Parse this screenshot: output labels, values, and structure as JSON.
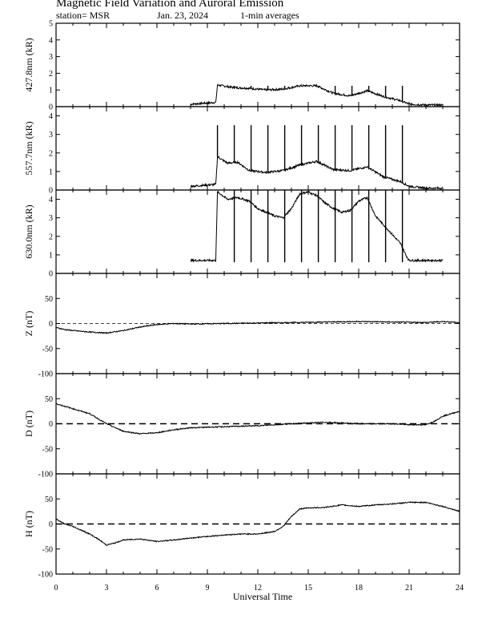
{
  "header": {
    "title": "Magnetic Field Variation and Auroral Emission",
    "station": "station= MSR",
    "date": "Jan. 23, 2024",
    "averaging": "1-min averages"
  },
  "chart_data": [
    {
      "id": "emission-4278",
      "type": "line",
      "ylabel": "427.8nm (kR)",
      "ylim": [
        0,
        5
      ],
      "yticks": [
        0,
        1,
        2,
        3,
        4,
        5
      ],
      "x": [
        8.0,
        9.5,
        9.6,
        10.5,
        11.5,
        12.5,
        13.5,
        14.5,
        15.5,
        16.5,
        17.5,
        18.5,
        19.5,
        20.5,
        21.0,
        22.0,
        23.0
      ],
      "values": [
        0.15,
        0.25,
        1.3,
        1.15,
        1.1,
        1.0,
        1.05,
        1.25,
        1.25,
        0.8,
        0.65,
        0.95,
        0.6,
        0.35,
        0.15,
        0.1,
        0.1
      ],
      "spikes_x": [
        10.6,
        11.6,
        12.6,
        13.6,
        14.6,
        15.6,
        16.6,
        17.6,
        18.6,
        19.6,
        20.6
      ],
      "spike_top": 1.25
    },
    {
      "id": "emission-5577",
      "type": "line",
      "ylabel": "557.7nm (kR)",
      "ylim": [
        0,
        4.5
      ],
      "yticks": [
        0,
        1,
        2,
        3,
        4
      ],
      "x": [
        8.0,
        9.5,
        9.6,
        10.2,
        10.8,
        11.5,
        12.5,
        13.5,
        14.5,
        15.5,
        16.5,
        17.5,
        18.5,
        19.5,
        20.5,
        21.0,
        22.0,
        23.0
      ],
      "values": [
        0.2,
        0.3,
        1.8,
        1.45,
        1.5,
        1.05,
        0.95,
        1.05,
        1.35,
        1.55,
        1.1,
        1.05,
        1.25,
        0.7,
        0.45,
        0.2,
        0.1,
        0.1
      ],
      "spikes_x": [
        9.6,
        10.6,
        11.6,
        12.6,
        13.6,
        14.6,
        15.6,
        16.6,
        17.6,
        18.6,
        19.6,
        20.6
      ],
      "spike_top": 3.5
    },
    {
      "id": "emission-6300",
      "type": "line",
      "ylabel": "630.0nm (kR)",
      "ylim": [
        0,
        4.5
      ],
      "yticks": [
        0,
        1,
        2,
        3,
        4
      ],
      "x": [
        8.0,
        9.5,
        9.6,
        10.2,
        10.8,
        11.5,
        12.0,
        12.5,
        13.0,
        13.5,
        14.0,
        14.5,
        15.0,
        15.5,
        16.0,
        16.5,
        17.0,
        17.5,
        18.0,
        18.5,
        19.0,
        19.5,
        20.0,
        20.5,
        20.8,
        21.0,
        22.0,
        23.0
      ],
      "values": [
        0.7,
        0.7,
        4.4,
        4.0,
        4.1,
        3.9,
        3.5,
        3.3,
        3.1,
        3.0,
        3.5,
        4.3,
        4.4,
        4.2,
        3.8,
        3.5,
        3.3,
        3.4,
        3.9,
        4.1,
        3.1,
        2.6,
        2.1,
        1.6,
        1.0,
        0.7,
        0.7,
        0.7
      ],
      "spikes_x": [
        10.6,
        11.6,
        12.6,
        13.6,
        14.6,
        15.6,
        16.6,
        17.6,
        18.6,
        19.6,
        20.6
      ],
      "spikes_low": 0.6,
      "spikes_high": 4.5
    },
    {
      "id": "mag-z",
      "type": "line",
      "ylabel": "Z (nT)",
      "ylim": [
        -100,
        100
      ],
      "yticks": [
        -100,
        -50,
        0,
        50
      ],
      "baseline": 0,
      "x": [
        0,
        0.5,
        1,
        2,
        3,
        4,
        5,
        6,
        7,
        8,
        10,
        12,
        14,
        16,
        18,
        20,
        22,
        23,
        24
      ],
      "values": [
        -8,
        -12,
        -14,
        -17,
        -19,
        -14,
        -7,
        -2,
        0,
        -1,
        0,
        1,
        2,
        3,
        4,
        3,
        2,
        4,
        2
      ]
    },
    {
      "id": "mag-d",
      "type": "line",
      "ylabel": "D (nT)",
      "ylim": [
        -100,
        100
      ],
      "yticks": [
        -100,
        -50,
        0,
        50
      ],
      "baseline": 0,
      "x": [
        0,
        0.5,
        1,
        2,
        3,
        4,
        5,
        6,
        7,
        8,
        9,
        10,
        12,
        14,
        16,
        18,
        20,
        21,
        22,
        22.5,
        23,
        24
      ],
      "values": [
        40,
        35,
        30,
        20,
        0,
        -15,
        -20,
        -18,
        -12,
        -8,
        -7,
        -6,
        -4,
        0,
        3,
        0,
        0,
        -2,
        -2,
        5,
        15,
        25
      ]
    },
    {
      "id": "mag-h",
      "type": "line",
      "ylabel": "H (nT)",
      "ylim": [
        -100,
        100
      ],
      "yticks": [
        -100,
        -50,
        0,
        50
      ],
      "baseline": 0,
      "x": [
        0,
        0.5,
        1,
        2,
        2.5,
        3,
        3.5,
        4,
        5,
        6,
        7,
        8,
        9,
        10,
        11,
        12,
        13,
        13.5,
        14,
        14.5,
        15,
        16,
        17,
        18,
        19,
        20,
        21,
        22,
        23,
        24
      ],
      "values": [
        10,
        0,
        -5,
        -20,
        -30,
        -42,
        -38,
        -32,
        -30,
        -35,
        -32,
        -28,
        -25,
        -22,
        -20,
        -20,
        -15,
        -5,
        15,
        30,
        32,
        33,
        38,
        35,
        38,
        40,
        43,
        43,
        35,
        25
      ]
    }
  ],
  "x_axis": {
    "label": "Universal Time",
    "range": [
      0,
      24
    ],
    "ticks": [
      "0",
      "3",
      "6",
      "9",
      "12",
      "15",
      "18",
      "21",
      "24"
    ]
  },
  "colors": {
    "line": "#000000",
    "background": "#ffffff"
  }
}
